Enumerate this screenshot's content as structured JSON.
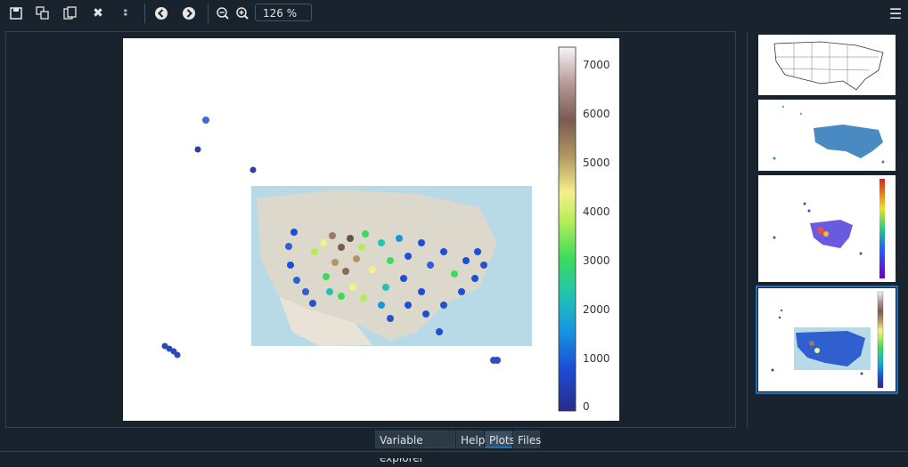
{
  "toolbar": {
    "icons": [
      "save-icon",
      "save-all-icon",
      "copy-icon",
      "close-icon",
      "close-all-icon",
      "back-icon",
      "forward-icon",
      "zoom-out-icon",
      "zoom-in-icon",
      "menu-icon"
    ],
    "zoom_value": "126 %"
  },
  "colorbar": {
    "ticks": [
      "7000",
      "6000",
      "5000",
      "4000",
      "3000",
      "2000",
      "1000",
      "0"
    ]
  },
  "tabs": [
    {
      "label": "Variable explorer"
    },
    {
      "label": "Help"
    },
    {
      "label": "Plots"
    },
    {
      "label": "Files"
    }
  ],
  "active_tab": "Plots",
  "colors": {
    "accent": "#1a72bb",
    "background": "#19232d"
  }
}
